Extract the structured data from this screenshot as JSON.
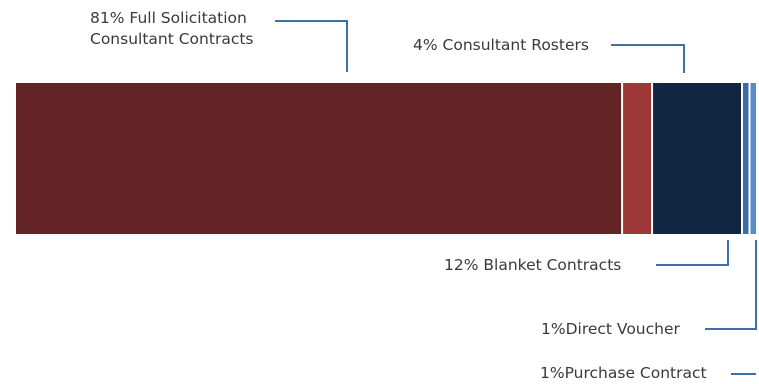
{
  "chart_data": {
    "type": "bar",
    "stacked": true,
    "orientation": "horizontal",
    "title": "",
    "xlabel": "",
    "ylabel": "",
    "grid": false,
    "legend": "none",
    "series": [
      {
        "name": "Full Solicitation Consultant Contracts",
        "value": 81,
        "label_line1": "81% Full Solicitation",
        "label_line2": "Consultant Contracts",
        "color": "#642426"
      },
      {
        "name": "Consultant Rosters",
        "value": 4,
        "label_line1": "4% Consultant Rosters",
        "color": "#9e3836"
      },
      {
        "name": "Blanket Contracts",
        "value": 12,
        "label_line1": "12% Blanket Contracts",
        "color": "#112640"
      },
      {
        "name": "Direct Voucher",
        "value": 1,
        "label_line1": "1%Direct Voucher",
        "color": "#3b6ea5"
      },
      {
        "name": "Purchase Contract",
        "value": 1,
        "label_line1": "1%Purchase Contract",
        "color": "#5b8cc8"
      }
    ],
    "leader_color": "#3f6fa8"
  }
}
